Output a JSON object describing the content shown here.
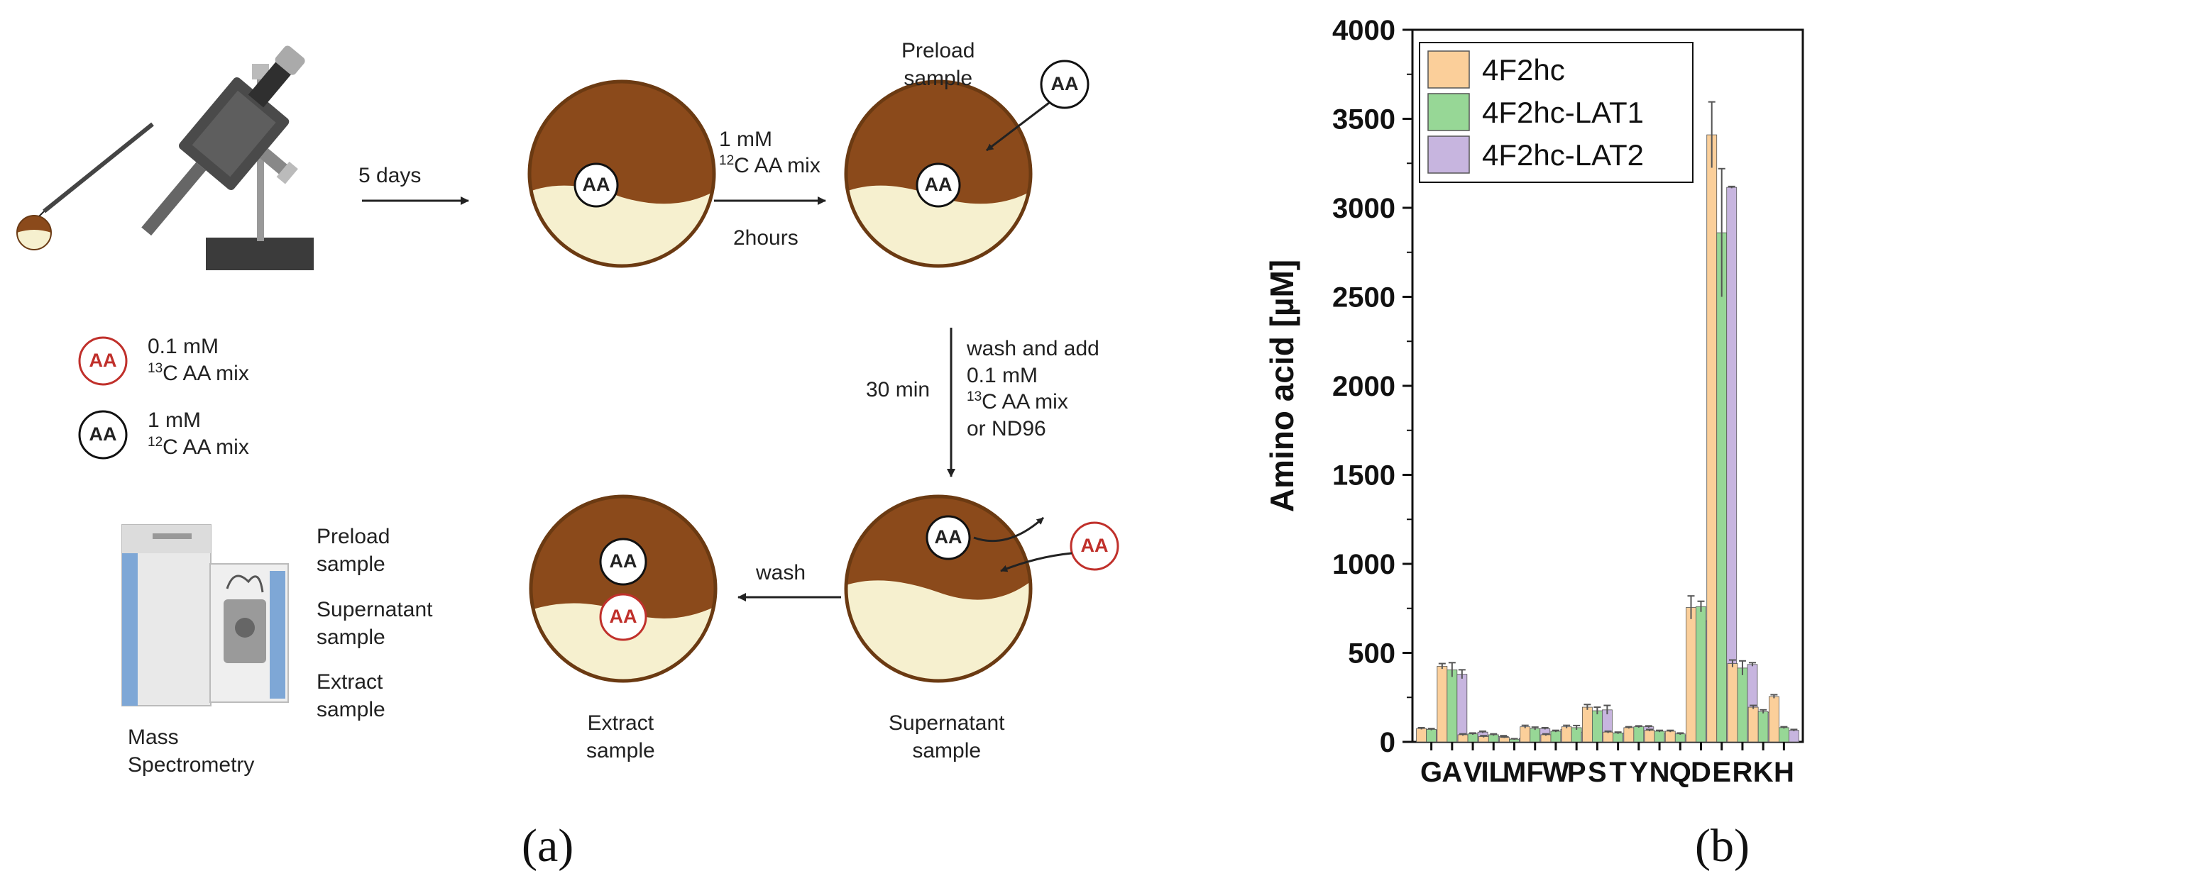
{
  "panel_a": {
    "caption": "(a)",
    "incubation": "5 days",
    "preload_step": {
      "line1": "1 mM",
      "sup": "12",
      "line2": "C AA mix",
      "time": "2hours"
    },
    "legend": [
      {
        "badge": "AA",
        "line1": "0.1 mM",
        "sup": "13",
        "line2": "C AA mix",
        "color": "#c0302b"
      },
      {
        "badge": "AA",
        "line1": "1 mM",
        "sup": "12",
        "line2": "C AA mix",
        "color": "#111111"
      }
    ],
    "preload_label": {
      "line1": "Preload",
      "line2": "sample"
    },
    "wash_step": {
      "time": "30 min",
      "line1": "wash and add",
      "line2": "0.1 mM",
      "sup": "13",
      "line3": "C AA mix",
      "line4": "or ND96"
    },
    "wash_label": "wash",
    "supernatant_label": {
      "line1": "Supernatant",
      "line2": "sample"
    },
    "extract_label": {
      "line1": "Extract",
      "line2": "sample"
    },
    "ms_samples": [
      {
        "line1": "Preload",
        "line2": "sample"
      },
      {
        "line1": "Supernatant",
        "line2": "sample"
      },
      {
        "line1": "Extract",
        "line2": "sample"
      }
    ],
    "ms_label": {
      "line1": "Mass",
      "line2": "Spectrometry"
    },
    "badge_text": "AA"
  },
  "panel_b": {
    "caption": "(b)"
  },
  "chart_data": {
    "type": "bar",
    "ylabel": "Amino acid [µM]",
    "xlabel": "",
    "ylim": [
      0,
      4000
    ],
    "yticks": [
      0,
      500,
      1000,
      1500,
      2000,
      2500,
      3000,
      3500,
      4000
    ],
    "legend_position": "top-left",
    "categories": [
      "G",
      "A",
      "V",
      "IL",
      "M",
      "F",
      "W",
      "P",
      "S",
      "T",
      "Y",
      "N",
      "Q",
      "D",
      "E",
      "R",
      "K",
      "H"
    ],
    "series": [
      {
        "name": "4F2hc",
        "color": "#fbcf9a",
        "values": [
          75,
          425,
          40,
          30,
          25,
          85,
          40,
          85,
          195,
          55,
          80,
          65,
          60,
          755,
          3410,
          440,
          195,
          255
        ],
        "errors": [
          5,
          15,
          5,
          5,
          3,
          8,
          5,
          8,
          15,
          5,
          5,
          5,
          5,
          65,
          185,
          20,
          10,
          10
        ]
      },
      {
        "name": "4F2hc-LAT1",
        "color": "#97d796",
        "values": [
          70,
          405,
          45,
          40,
          15,
          75,
          60,
          80,
          175,
          50,
          85,
          60,
          45,
          760,
          2860,
          415,
          170,
          80
        ],
        "errors": [
          5,
          40,
          5,
          5,
          3,
          8,
          5,
          12,
          20,
          5,
          5,
          5,
          5,
          30,
          360,
          40,
          10,
          5
        ]
      },
      {
        "name": "4F2hc-LAT2",
        "color": "#c7b5df",
        "values": [
          65,
          380,
          55,
          30,
          20,
          75,
          70,
          55,
          180,
          50,
          85,
          45,
          35,
          680,
          3115,
          435,
          165,
          65
        ],
        "errors": [
          5,
          25,
          5,
          5,
          3,
          5,
          5,
          5,
          25,
          5,
          5,
          5,
          5,
          90,
          5,
          10,
          10,
          5
        ]
      }
    ]
  }
}
